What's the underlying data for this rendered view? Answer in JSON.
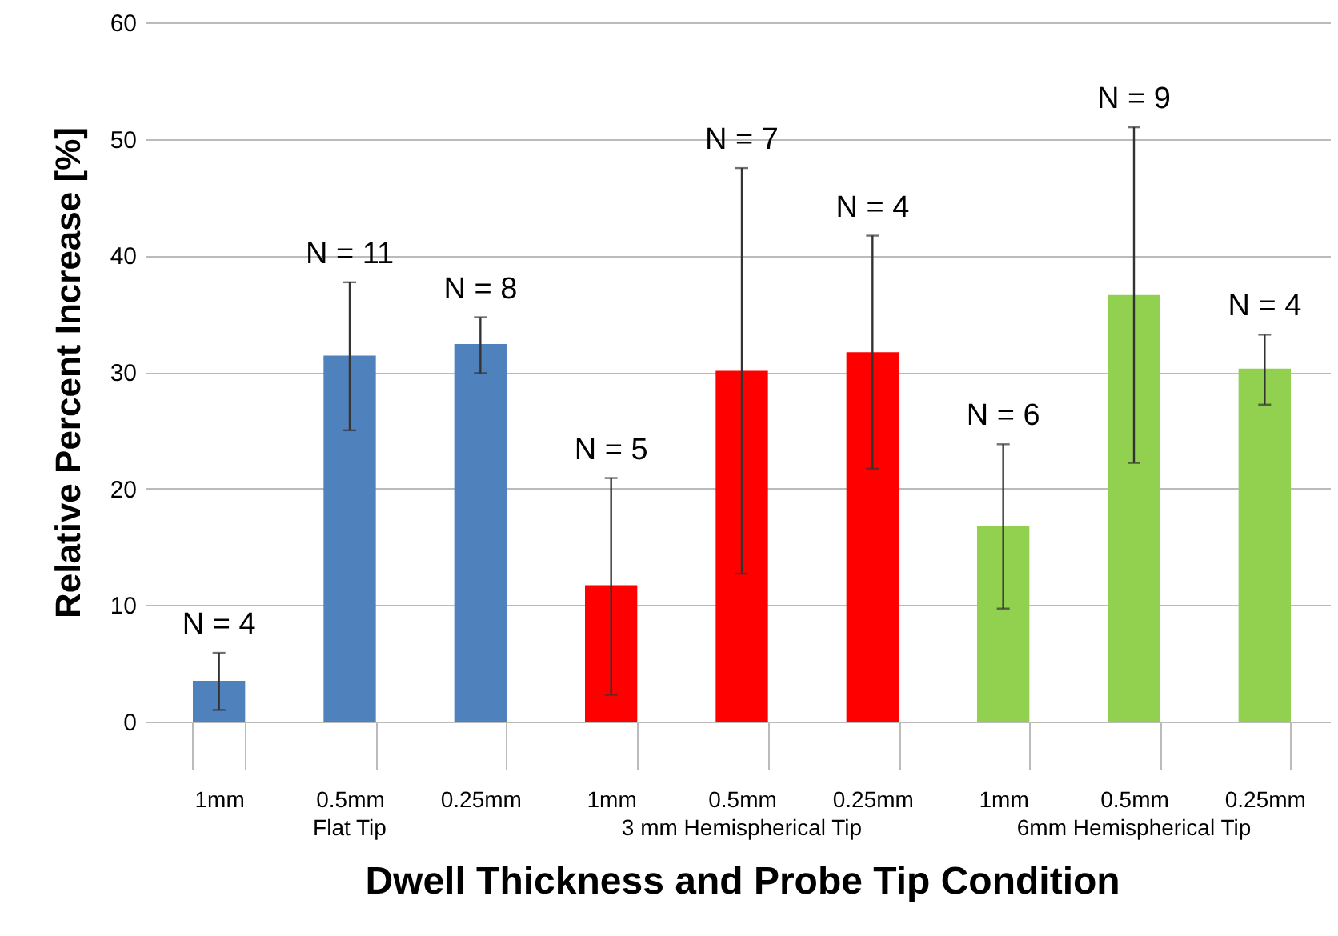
{
  "chart_data": {
    "type": "bar",
    "xlabel": "Dwell Thickness and  Probe Tip Condition",
    "ylabel": "Relative Percent Increase [%]",
    "categories": [
      "1mm",
      "0.5mm",
      "0.25mm",
      "1mm",
      "0.5mm",
      "0.25mm",
      "1mm",
      "0.5mm",
      "0.25mm"
    ],
    "values": [
      3.5,
      31.4,
      32.4,
      11.7,
      30.1,
      31.7,
      16.8,
      36.6,
      30.3
    ],
    "errors": [
      [
        1.0,
        5.9
      ],
      [
        25.0,
        37.7
      ],
      [
        29.9,
        34.7
      ],
      [
        2.3,
        20.9
      ],
      [
        12.7,
        47.5
      ],
      [
        21.7,
        41.7
      ],
      [
        9.7,
        23.8
      ],
      [
        22.2,
        51.0
      ],
      [
        27.2,
        33.2
      ]
    ],
    "colors": [
      "#4f81bd",
      "#4f81bd",
      "#4f81bd",
      "#ff0000",
      "#ff0000",
      "#ff0000",
      "#92d050",
      "#92d050",
      "#92d050"
    ],
    "annotations": [
      "N = 4",
      "N = 11",
      "N = 8",
      "N = 5",
      "N = 7",
      "N = 4",
      "N = 6",
      "N = 9",
      "N = 4",
      "Flat Tip",
      "3 mm Hemispherical Tip",
      "6mm  Hemispherical Tip"
    ],
    "ylim": [
      0,
      60
    ],
    "yticks": [
      0,
      10,
      20,
      30,
      40,
      50,
      60
    ],
    "grid": "y",
    "legend": false
  }
}
